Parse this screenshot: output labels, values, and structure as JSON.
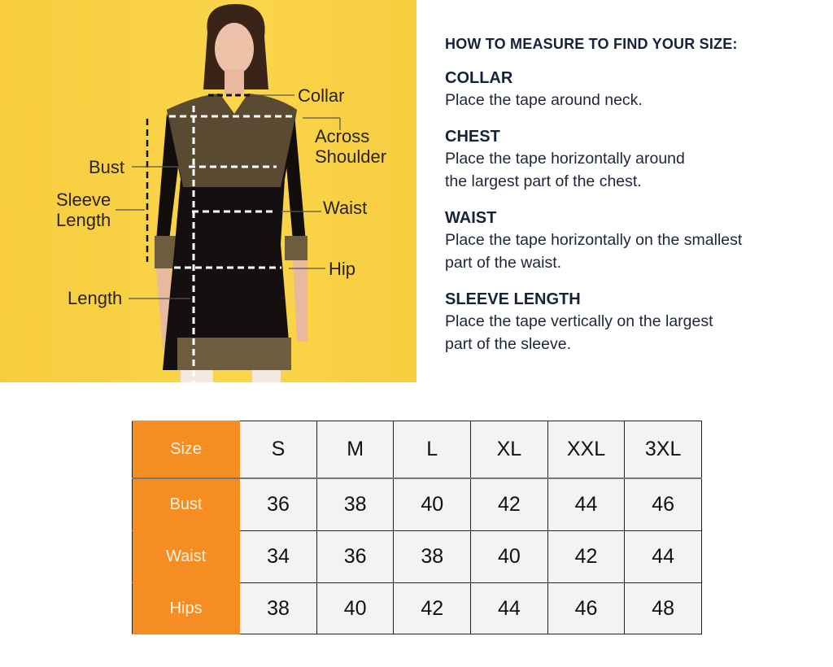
{
  "figure": {
    "labels": {
      "collar": "Collar",
      "across_shoulder_1": "Across",
      "across_shoulder_2": "Shoulder",
      "bust": "Bust",
      "sleeve_1": "Sleeve",
      "sleeve_2": "Length",
      "waist": "Waist",
      "hip": "Hip",
      "length": "Length"
    }
  },
  "guide": {
    "heading": "HOW TO MEASURE TO FIND YOUR SIZE:",
    "sections": [
      {
        "title": "COLLAR",
        "lines": [
          "Place the tape around neck."
        ]
      },
      {
        "title": "CHEST",
        "lines": [
          "Place the tape horizontally around",
          "the largest part of the chest."
        ]
      },
      {
        "title": "WAIST",
        "lines": [
          "Place the tape horizontally on the smallest",
          "part of the waist."
        ]
      },
      {
        "title": "SLEEVE LENGTH",
        "lines": [
          "Place the tape vertically on the largest",
          "part of the sleeve."
        ]
      }
    ]
  },
  "size_table": {
    "header_color": "#f68d22",
    "rows": [
      {
        "label": "Size",
        "values": [
          "S",
          "M",
          "L",
          "XL",
          "XXL",
          "3XL"
        ]
      },
      {
        "label": "Bust",
        "values": [
          "36",
          "38",
          "40",
          "42",
          "44",
          "46"
        ]
      },
      {
        "label": "Waist",
        "values": [
          "34",
          "36",
          "38",
          "40",
          "42",
          "44"
        ]
      },
      {
        "label": "Hips",
        "values": [
          "38",
          "40",
          "42",
          "44",
          "46",
          "48"
        ]
      }
    ]
  }
}
